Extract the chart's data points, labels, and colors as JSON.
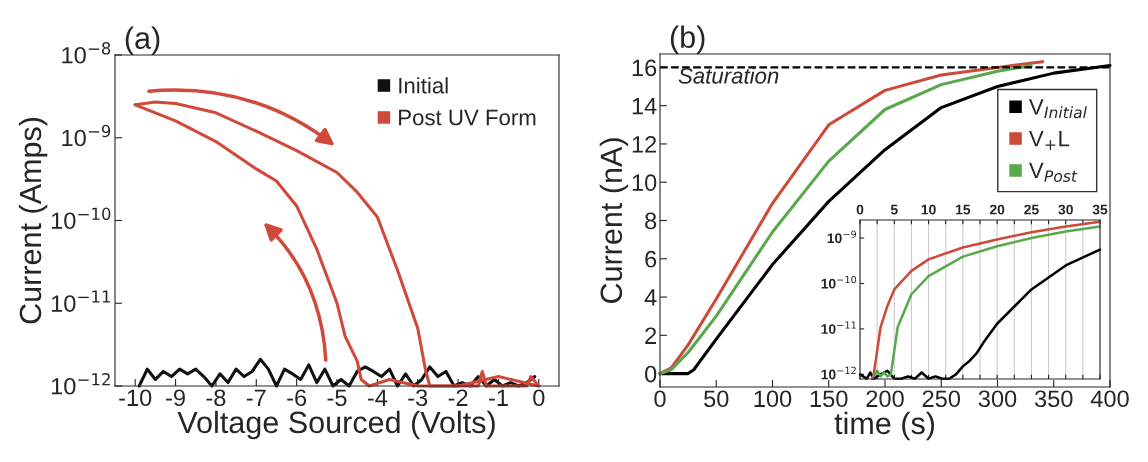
{
  "chart_data": [
    {
      "type": "line",
      "title": "(a)",
      "xlabel": "Voltage Sourced (Volts)",
      "ylabel": "Current (Amps)",
      "log": "y",
      "xlim": [
        -10.5,
        0.5
      ],
      "ylim": [
        1e-12,
        1e-08
      ],
      "xticks": [
        -10,
        -9,
        -8,
        -7,
        -6,
        -5,
        -4,
        -3,
        -2,
        -1,
        0
      ],
      "yticks": [
        {
          "value": 1e-12,
          "label": "10$^{−12}$"
        },
        {
          "value": 1e-11,
          "label": "10$^{−11}$"
        },
        {
          "value": 1e-10,
          "label": "10$^{−10}$"
        },
        {
          "value": 1e-09,
          "label": "10$^{−9}$"
        },
        {
          "value": 1e-08,
          "label": "10$^{−8}$"
        }
      ],
      "legend": "top right",
      "series": [
        {
          "name": "Initial",
          "color": "#111111",
          "x": [
            -9.9,
            -9.7,
            -9.5,
            -9.3,
            -9.1,
            -8.9,
            -8.7,
            -8.5,
            -8.3,
            -8.1,
            -7.9,
            -7.7,
            -7.5,
            -7.3,
            -7.1,
            -6.9,
            -6.7,
            -6.5,
            -6.3,
            -6.1,
            -5.9,
            -5.7,
            -5.5,
            -5.3,
            -5.1,
            -4.9,
            -4.7,
            -4.5,
            -4.3,
            -4.1,
            -3.9,
            -3.7,
            -3.5,
            -3.3,
            -3.1,
            -2.9,
            -2.7,
            -2.5,
            -2.3,
            -2.1,
            -1.9,
            -1.7,
            -1.5,
            -1.3,
            -1.1,
            -0.9,
            -0.7,
            -0.5,
            -0.3,
            -0.1
          ],
          "values": [
            1e-12,
            1.6e-12,
            1.2e-12,
            1.5e-12,
            1.3e-12,
            1.6e-12,
            1.4e-12,
            1.6e-12,
            1.3e-12,
            1e-12,
            1.4e-12,
            1.1e-12,
            1.6e-12,
            1.3e-12,
            1.5e-12,
            2.1e-12,
            1.6e-12,
            1e-12,
            1.6e-12,
            1.4e-12,
            1.2e-12,
            1.8e-12,
            1.1e-12,
            1.6e-12,
            1e-12,
            1.2e-12,
            1e-12,
            1.5e-12,
            1.7e-12,
            1.5e-12,
            1.3e-12,
            1.6e-12,
            1e-12,
            1.4e-12,
            1e-12,
            1.2e-12,
            1.7e-12,
            1.3e-12,
            1.5e-12,
            1e-12,
            1.1e-12,
            1e-12,
            1.3e-12,
            1e-12,
            1.2e-12,
            1e-12,
            1.1e-12,
            1e-12,
            1.1e-12,
            1.3e-12
          ]
        },
        {
          "name": "Post UV Form",
          "color": "#d04a3c",
          "x": [
            -10,
            -9,
            -8,
            -7,
            -6.5,
            -6,
            -5.5,
            -5,
            -4.8,
            -4.5,
            -4.4,
            -4.2,
            -3.7,
            -3,
            -2,
            -1,
            0
          ],
          "values": [
            2.5e-09,
            1.6e-09,
            9e-10,
            4.2e-10,
            3e-10,
            1.5e-10,
            4.5e-11,
            1e-11,
            4e-12,
            2e-12,
            1.2e-12,
            1e-12,
            1.2e-12,
            1e-12,
            1e-12,
            1.3e-12,
            1e-12
          ]
        },
        {
          "color": "#d04a3c",
          "x": [
            -10,
            -9.5,
            -9,
            -8,
            -7,
            -6,
            -5,
            -4.5,
            -4,
            -3.5,
            -3,
            -2.8,
            -2.7,
            -1.5,
            -1.4,
            -1.3,
            -0.3,
            -0.2,
            0
          ],
          "values": [
            2.5e-09,
            2.7e-09,
            2.6e-09,
            2e-09,
            1.2e-09,
            7e-10,
            3.8e-10,
            2.2e-10,
            1.1e-10,
            2.5e-11,
            5e-12,
            1.5e-12,
            1e-12,
            1e-12,
            1.5e-12,
            1e-12,
            1e-12,
            1.3e-12,
            1e-12
          ]
        }
      ]
    },
    {
      "type": "line",
      "title": "(b)",
      "xlabel": "time (s)",
      "ylabel": "Current (nA)",
      "xlim": [
        0,
        400
      ],
      "ylim": [
        -0.7,
        16.7
      ],
      "xticks": [
        0,
        50,
        100,
        150,
        200,
        250,
        300,
        350,
        400
      ],
      "yticks": [
        0,
        2,
        4,
        6,
        8,
        10,
        12,
        14,
        16
      ],
      "legend": "right",
      "ref_lines": [
        {
          "axis": "y",
          "value": 16,
          "label": "Saturation",
          "line_style": "dashed",
          "color": "#000000"
        }
      ],
      "series": [
        {
          "name": "V$_{Initial}$",
          "color": "#000000",
          "x": [
            0,
            25,
            30,
            50,
            100,
            150,
            200,
            250,
            300,
            350,
            400
          ],
          "values": [
            0,
            0,
            0.2,
            1.8,
            5.7,
            9.0,
            11.7,
            13.9,
            15.0,
            15.7,
            16.1
          ]
        },
        {
          "name": "V$_{+}$L",
          "color": "#cc4a3a",
          "x": [
            0,
            10,
            25,
            50,
            100,
            150,
            200,
            250,
            300,
            340
          ],
          "values": [
            0,
            0.3,
            1.5,
            3.9,
            8.9,
            13.0,
            14.8,
            15.6,
            16.0,
            16.3
          ]
        },
        {
          "name": "V$_{Post}$",
          "color": "#5aa84c",
          "x": [
            0,
            10,
            25,
            50,
            100,
            150,
            200,
            250,
            300,
            330
          ],
          "values": [
            0,
            0.2,
            1.1,
            3.0,
            7.4,
            11.1,
            13.8,
            15.1,
            15.8,
            16.1
          ]
        }
      ]
    },
    {
      "type": "line",
      "log": "y",
      "xlim": [
        0,
        35
      ],
      "ylim": [
        7.9e-13,
        2.5e-09
      ],
      "xticks": [
        0,
        {
          "value": 2.5,
          "label": null
        },
        5,
        {
          "value": 7.5,
          "label": null
        },
        10,
        {
          "value": 12.5,
          "label": null
        },
        15,
        {
          "value": 17.5,
          "label": null
        },
        20,
        {
          "value": 22.5,
          "label": null
        },
        25,
        {
          "value": 27.5,
          "label": null
        },
        30,
        {
          "value": 32.5,
          "label": null
        },
        35
      ],
      "yticks": [
        {
          "value": 1e-12,
          "label": "10$^{−12}$"
        },
        {
          "value": 1e-11,
          "label": "10$^{−11}$"
        },
        {
          "value": 1e-10,
          "label": "10$^{−10}$"
        },
        {
          "value": 1e-09,
          "label": "10$^{−9}$"
        }
      ],
      "grid": "x",
      "series": [
        {
          "color": "#000000",
          "x": [
            0,
            1,
            1.5,
            2,
            3,
            4,
            5,
            6,
            7,
            8,
            9,
            10,
            11,
            12,
            13,
            14,
            15,
            16,
            17,
            18,
            20,
            25,
            30,
            35
          ],
          "values": [
            1e-12,
            8e-13,
            1.1e-12,
            8e-13,
            1e-12,
            1.2e-12,
            8e-13,
            8e-13,
            9e-13,
            8e-13,
            1.1e-12,
            8e-13,
            9e-13,
            8e-13,
            8e-13,
            1e-12,
            1.5e-12,
            2e-12,
            2.9e-12,
            5e-12,
            1.3e-11,
            7.4e-11,
            2.5e-10,
            5.6e-10
          ]
        },
        {
          "color": "#cc4a3a",
          "x": [
            1.8,
            2,
            3,
            4,
            5,
            7.5,
            10,
            15,
            20,
            25,
            30,
            35
          ],
          "values": [
            8e-13,
            1e-12,
            1.1e-11,
            3.2e-11,
            7.4e-11,
            1.9e-10,
            3.4e-10,
            6.2e-10,
            9.3e-10,
            1.35e-09,
            1.8e-09,
            2.3e-09
          ]
        },
        {
          "color": "#5aa84c",
          "x": [
            2,
            2.5,
            3,
            3.5,
            4,
            4.5,
            5.5,
            7.5,
            10,
            15,
            20,
            25,
            30,
            35
          ],
          "values": [
            9e-13,
            1.2e-12,
            9e-13,
            1.1e-12,
            9e-13,
            1e-12,
            1.1e-11,
            5.8e-11,
            1.45e-10,
            3.9e-10,
            6.6e-10,
            1e-09,
            1.4e-09,
            1.8e-09
          ]
        }
      ]
    }
  ]
}
